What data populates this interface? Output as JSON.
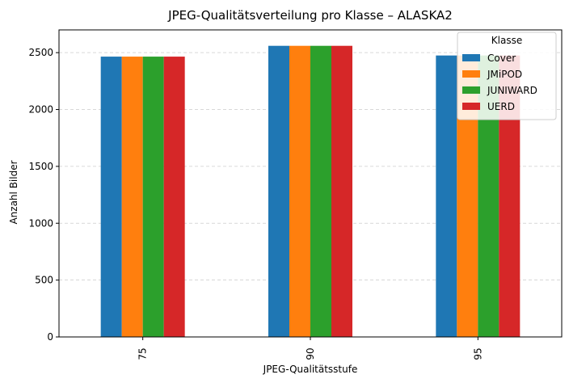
{
  "chart_data": {
    "type": "bar",
    "title": "JPEG-Qualitätsverteilung pro Klasse – ALASKA2",
    "xlabel": "JPEG-Qualitätsstufe",
    "ylabel": "Anzahl Bilder",
    "categories": [
      "75",
      "90",
      "95"
    ],
    "ylim": [
      0,
      2700
    ],
    "yticks": [
      0,
      500,
      1000,
      1500,
      2000,
      2500
    ],
    "grid": "horizontal, dashed",
    "legend": {
      "title": "Klasse",
      "position": "top-right"
    },
    "series": [
      {
        "name": "Cover",
        "color": "#1f77b4",
        "values": [
          2465,
          2560,
          2475
        ]
      },
      {
        "name": "JMiPOD",
        "color": "#ff7f0e",
        "values": [
          2465,
          2560,
          2475
        ]
      },
      {
        "name": "JUNIWARD",
        "color": "#2ca02c",
        "values": [
          2465,
          2560,
          2475
        ]
      },
      {
        "name": "UERD",
        "color": "#d62728",
        "values": [
          2465,
          2560,
          2475
        ]
      }
    ]
  }
}
